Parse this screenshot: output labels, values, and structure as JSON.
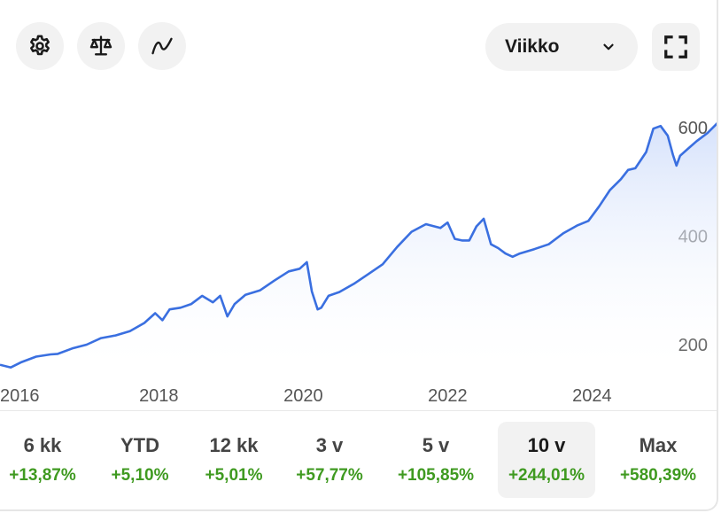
{
  "toolbar": {
    "settings_icon": "gear-icon",
    "compare_icon": "scale-icon",
    "chart_style_icon": "line-wave-icon",
    "interval_value": "Viikko",
    "interval_icon": "chevron-down-icon",
    "fullscreen_icon": "expand-icon"
  },
  "periods": [
    {
      "label": "6 kk",
      "change": "+13,87%",
      "active": false
    },
    {
      "label": "YTD",
      "change": "+5,10%",
      "active": false
    },
    {
      "label": "12 kk",
      "change": "+5,01%",
      "active": false
    },
    {
      "label": "3 v",
      "change": "+57,77%",
      "active": false
    },
    {
      "label": "5 v",
      "change": "+105,85%",
      "active": false
    },
    {
      "label": "10 v",
      "change": "+244,01%",
      "active": true
    },
    {
      "label": "Max",
      "change": "+580,39%",
      "active": false
    }
  ],
  "chart_data": {
    "type": "area",
    "x_ticks": [
      "2016",
      "2018",
      "2020",
      "2022",
      "2024"
    ],
    "y_ticks": [
      "200",
      "400",
      "600"
    ],
    "y_tick_values": [
      200,
      400,
      600
    ],
    "xlim": [
      2015.8,
      2025.75
    ],
    "ylim": [
      120,
      660
    ],
    "line_color": "#3a6fe0",
    "fill_color": "#e3ebfc",
    "grid": false,
    "series": [
      {
        "x": [
          2015.8,
          2015.95,
          2016.1,
          2016.3,
          2016.5,
          2016.6,
          2016.8,
          2017.0,
          2017.2,
          2017.4,
          2017.6,
          2017.8,
          2017.95,
          2018.05,
          2018.15,
          2018.3,
          2018.45,
          2018.6,
          2018.75,
          2018.85,
          2018.95,
          2019.05,
          2019.2,
          2019.4,
          2019.6,
          2019.8,
          2019.95,
          2020.05,
          2020.12,
          2020.2,
          2020.25,
          2020.35,
          2020.5,
          2020.7,
          2020.9,
          2021.1,
          2021.3,
          2021.5,
          2021.7,
          2021.9,
          2022.0,
          2022.1,
          2022.2,
          2022.3,
          2022.4,
          2022.5,
          2022.6,
          2022.7,
          2022.8,
          2022.9,
          2023.0,
          2023.2,
          2023.4,
          2023.6,
          2023.8,
          2023.95,
          2024.1,
          2024.25,
          2024.4,
          2024.5,
          2024.6,
          2024.75,
          2024.85,
          2024.95,
          2025.05,
          2025.12,
          2025.17,
          2025.22,
          2025.32,
          2025.45,
          2025.6,
          2025.75
        ],
        "y": [
          163,
          158,
          168,
          178,
          182,
          183,
          193,
          200,
          212,
          217,
          225,
          240,
          258,
          245,
          265,
          268,
          275,
          290,
          278,
          290,
          252,
          275,
          292,
          300,
          318,
          335,
          340,
          352,
          298,
          265,
          268,
          290,
          297,
          312,
          330,
          348,
          380,
          408,
          422,
          415,
          425,
          395,
          392,
          392,
          418,
          432,
          385,
          378,
          368,
          362,
          368,
          376,
          385,
          405,
          420,
          428,
          455,
          485,
          505,
          522,
          525,
          555,
          598,
          603,
          585,
          550,
          530,
          548,
          560,
          575,
          590,
          610
        ]
      }
    ]
  }
}
